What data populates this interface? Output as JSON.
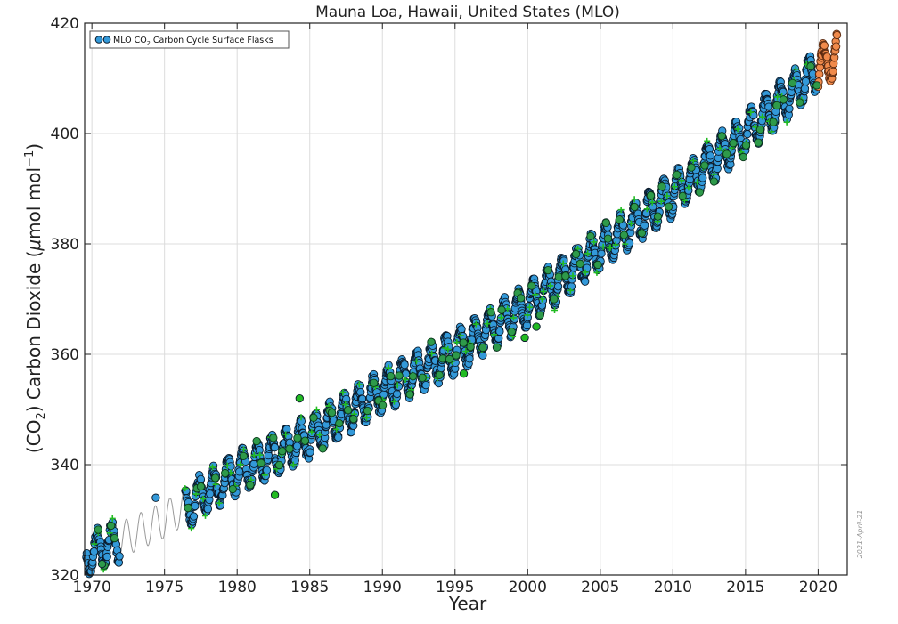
{
  "chart_data": {
    "type": "scatter",
    "title": "Mauna Loa, Hawaii, United States (MLO)",
    "xlabel": "Year",
    "ylabel_parts": [
      "(CO",
      "2",
      ") Carbon Dioxide (",
      "μ",
      "mol mol",
      "−1",
      ")"
    ],
    "xlim": [
      1969.5,
      2022.0
    ],
    "ylim": [
      320,
      420
    ],
    "xticks": [
      1970,
      1975,
      1980,
      1985,
      1990,
      1995,
      2000,
      2005,
      2010,
      2015,
      2020
    ],
    "yticks": [
      320,
      340,
      360,
      380,
      400,
      420
    ],
    "grid": true,
    "legend": {
      "placement": "top-left",
      "label_parts": [
        "MLO CO",
        "2",
        " Carbon Cycle Surface Flasks"
      ]
    },
    "date_stamp": "2021-April-21",
    "trend": {
      "description_points_years": [
        1969.6,
        1975,
        1980,
        1985,
        1990,
        1995,
        2000,
        2005,
        2010,
        2015,
        2021.3
      ],
      "base_ppm": [
        323.5,
        330.0,
        338.5,
        345.0,
        353.5,
        360.5,
        369.0,
        379.0,
        389.0,
        400.0,
        414.5
      ],
      "seasonal_amplitude_ppm": 3.3,
      "sampling_gap_years": [
        [
          1971.9,
          1976.4
        ]
      ]
    },
    "series": [
      {
        "name": "MLO CO2 Carbon Cycle Surface Flasks",
        "marker": "circle",
        "color": "#3399d9",
        "edge": "#0a1a2a",
        "x_range": [
          1969.6,
          2020.0
        ],
        "samples_per_year": 36
      },
      {
        "marker": "circle",
        "color": "#f08a4b",
        "edge": "#5a2a10",
        "x_range": [
          2020.0,
          2021.3
        ],
        "samples_per_year": 40
      },
      {
        "marker": "plus",
        "color": "#22bb22",
        "x_range": [
          1970.0,
          2020.0
        ],
        "samples_per_year": 3
      },
      {
        "marker": "circle",
        "color": "#2e9a4a",
        "edge": "#0a3a1a",
        "x_range": [
          1970.0,
          2020.0
        ],
        "samples_per_year": 2
      }
    ],
    "outliers": [
      {
        "x": 1974.4,
        "y": 334.0,
        "color": "#3399d9"
      },
      {
        "x": 1970.7,
        "y": 322.0,
        "color": "#2e9a4a"
      },
      {
        "x": 1982.6,
        "y": 334.5,
        "color": "#22bb22"
      },
      {
        "x": 1984.3,
        "y": 352.0,
        "color": "#22bb22"
      },
      {
        "x": 1999.8,
        "y": 363.0,
        "color": "#22bb22"
      },
      {
        "x": 2000.6,
        "y": 365.0,
        "color": "#22bb22"
      },
      {
        "x": 1995.6,
        "y": 356.5,
        "color": "#22bb22"
      }
    ]
  },
  "colors": {
    "grid": "#dcdcdc",
    "axis": "#222222",
    "trend_line": "#9a9a9a"
  }
}
